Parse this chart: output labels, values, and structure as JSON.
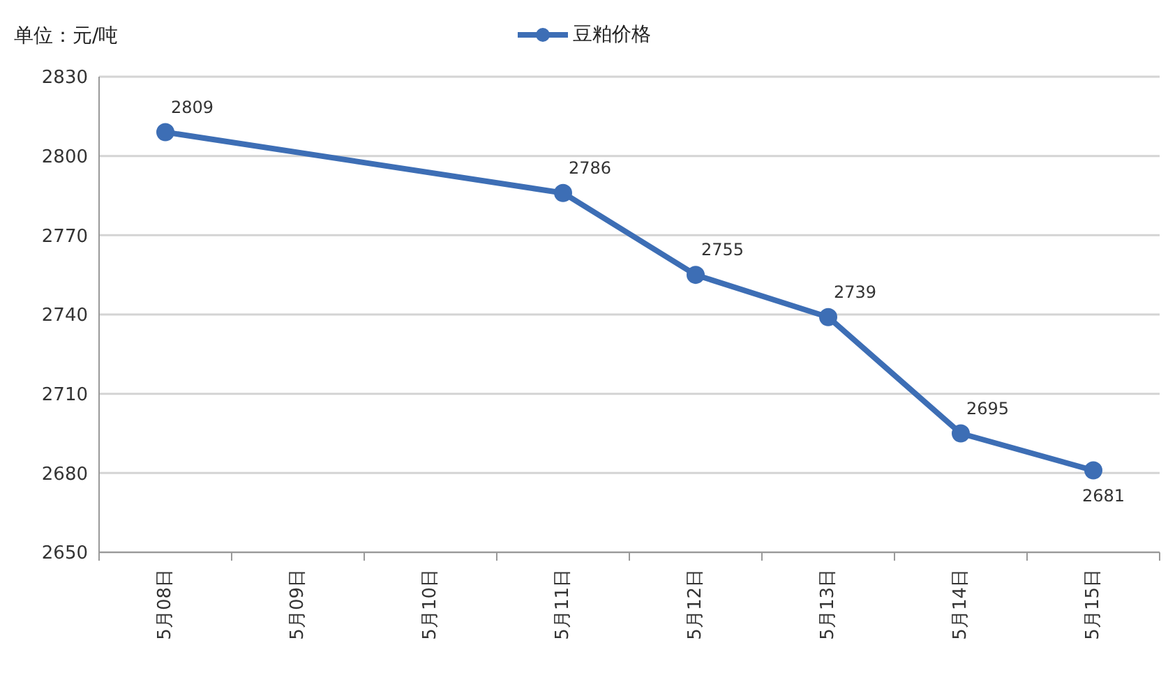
{
  "chart_data": {
    "type": "line",
    "ylabel": "单位：元/吨",
    "categories": [
      "5月08日",
      "5月09日",
      "5月10日",
      "5月11日",
      "5月12日",
      "5月13日",
      "5月14日",
      "5月15日"
    ],
    "series": [
      {
        "name": "豆粕价格",
        "color": "#3d6eb5",
        "values": [
          2809,
          null,
          null,
          2786,
          2755,
          2739,
          2695,
          2681
        ]
      }
    ],
    "ylim": [
      2650,
      2830
    ],
    "yticks": [
      2650,
      2680,
      2710,
      2740,
      2770,
      2800,
      2830
    ],
    "grid": "y",
    "legend": "top",
    "marker": "circle",
    "line_style": "solid",
    "data_labels": true
  }
}
